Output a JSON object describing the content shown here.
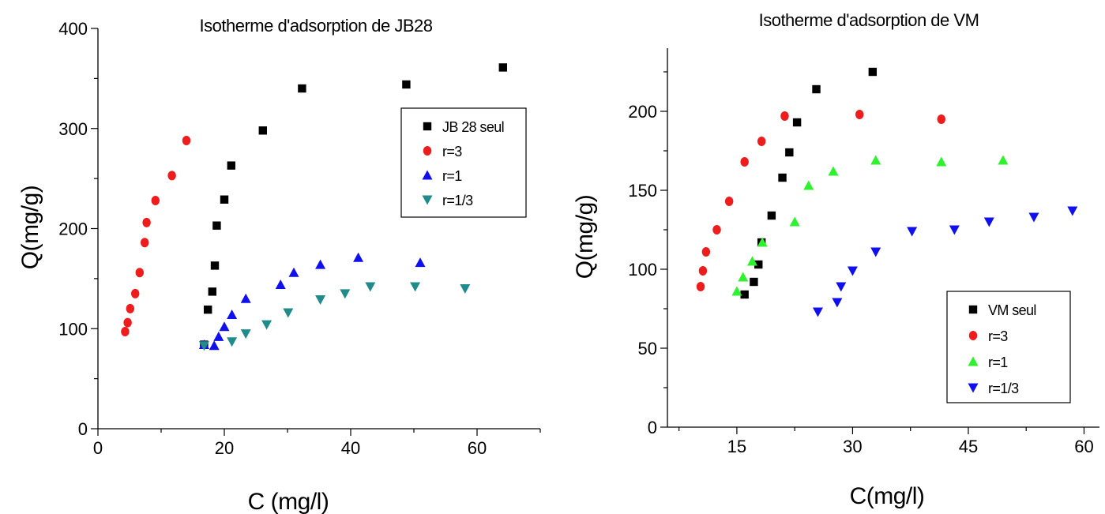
{
  "chart_data": [
    {
      "type": "scatter",
      "title": "Isotherme d'adsorption de JB28",
      "xlabel": "C (mg/l)",
      "ylabel": "Q(mg/g)",
      "xlim": [
        0,
        70
      ],
      "ylim": [
        0,
        400
      ],
      "xticks": [
        0,
        20,
        40,
        60
      ],
      "yticks": [
        0,
        100,
        200,
        300,
        400
      ],
      "grid": false,
      "legend_position": "top-right",
      "series": [
        {
          "name": "JB 28 seul",
          "marker": "square",
          "color": "#000000",
          "x": [
            16.8,
            17.4,
            18.1,
            18.5,
            18.8,
            20.0,
            21.1,
            26.1,
            32.3,
            48.8,
            64.1
          ],
          "y": [
            84,
            119,
            137,
            163,
            203,
            229,
            263,
            298,
            340,
            344,
            361
          ]
        },
        {
          "name": "r=3",
          "marker": "circle",
          "color": "#ee1c1c",
          "x": [
            4.3,
            4.7,
            5.1,
            5.9,
            6.6,
            7.4,
            7.7,
            9.1,
            11.7,
            14.0
          ],
          "y": [
            97,
            106,
            120,
            135,
            156,
            186,
            206,
            228,
            253,
            288
          ]
        },
        {
          "name": "r=1",
          "marker": "triangle-up",
          "color": "#1010ee",
          "x": [
            16.8,
            18.4,
            19.1,
            20.0,
            21.2,
            23.4,
            28.9,
            31.0,
            35.2,
            41.2,
            51.0
          ],
          "y": [
            84,
            83,
            92,
            102,
            114,
            130,
            144,
            156,
            164,
            171,
            166
          ]
        },
        {
          "name": "r=1/3",
          "marker": "triangle-down",
          "color": "#1f8b8b",
          "x": [
            16.8,
            21.2,
            23.4,
            26.7,
            30.1,
            35.2,
            39.1,
            43.1,
            50.2,
            58.1
          ],
          "y": [
            83,
            87,
            95,
            104,
            116,
            129,
            135,
            142,
            142,
            140
          ]
        }
      ]
    },
    {
      "type": "scatter",
      "title": "Isotherme d'adsorption de VM",
      "xlabel": "C(mg/l)",
      "ylabel": "Q(mg/g)",
      "xlim": [
        6,
        62
      ],
      "ylim": [
        0,
        240
      ],
      "xticks": [
        15,
        30,
        45,
        60
      ],
      "yticks": [
        0,
        50,
        100,
        150,
        200
      ],
      "grid": false,
      "legend_position": "bottom-right",
      "series": [
        {
          "name": "VM seul",
          "marker": "square",
          "color": "#000000",
          "x": [
            16.0,
            17.2,
            17.8,
            18.2,
            19.5,
            20.9,
            21.8,
            22.8,
            25.3,
            32.6
          ],
          "y": [
            84,
            92,
            103,
            117,
            134,
            158,
            174,
            193,
            214,
            225
          ]
        },
        {
          "name": "r=3",
          "marker": "circle",
          "color": "#ee1c1c",
          "x": [
            10.3,
            10.6,
            11.0,
            12.4,
            14.0,
            16.0,
            18.2,
            21.2,
            30.9,
            41.5
          ],
          "y": [
            89,
            99,
            111,
            125,
            143,
            168,
            181,
            197,
            198,
            195
          ]
        },
        {
          "name": "r=1",
          "marker": "triangle-up",
          "color": "#2ef22e",
          "x": [
            15.0,
            15.8,
            17.0,
            18.3,
            22.5,
            24.3,
            27.5,
            33.0,
            41.5,
            49.5
          ],
          "y": [
            86,
            95,
            105,
            117,
            130,
            153,
            162,
            169,
            168,
            169
          ]
        },
        {
          "name": "r=1/3",
          "marker": "triangle-down",
          "color": "#1010ee",
          "x": [
            25.5,
            28.0,
            28.5,
            30.0,
            33.0,
            37.7,
            43.2,
            47.7,
            53.5,
            58.5
          ],
          "y": [
            73,
            79,
            89,
            99,
            111,
            124,
            125,
            130,
            133,
            137
          ]
        }
      ]
    }
  ]
}
